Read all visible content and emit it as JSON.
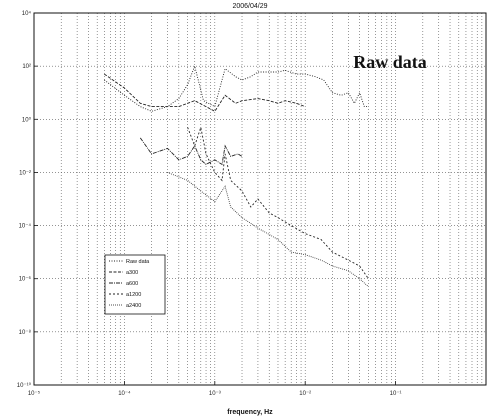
{
  "chart_data": {
    "type": "line",
    "title": "2006/04/29",
    "xlabel": "frequency, Hz",
    "ylabel": "",
    "x_scale": "log",
    "y_scale": "log",
    "xlim": [
      1e-05,
      1
    ],
    "ylim": [
      1e-10,
      10000
    ],
    "grid": true,
    "legend_position": "lower-left",
    "annotation": "Raw data",
    "x_ticks": [
      {
        "value": 1e-05,
        "label": "10⁻⁵"
      },
      {
        "value": 0.0001,
        "label": "10⁻⁴"
      },
      {
        "value": 0.001,
        "label": "10⁻³"
      },
      {
        "value": 0.01,
        "label": "10⁻²"
      },
      {
        "value": 0.1,
        "label": "10⁻¹"
      }
    ],
    "y_ticks": [
      {
        "value": 10000,
        "label": "10⁴"
      },
      {
        "value": 100,
        "label": "10²"
      },
      {
        "value": 1,
        "label": "10⁰"
      },
      {
        "value": 0.01,
        "label": "10⁻²"
      },
      {
        "value": 0.0001,
        "label": "10⁻⁴"
      },
      {
        "value": 1e-06,
        "label": "10⁻⁶"
      },
      {
        "value": 1e-08,
        "label": "10⁻⁸"
      },
      {
        "value": 1e-10,
        "label": "10⁻¹⁰"
      }
    ],
    "series": [
      {
        "name": "Raw data",
        "dash": "1,1.5",
        "x": [
          6e-05,
          0.0001,
          0.00015,
          0.0002,
          0.0003,
          0.0004,
          0.0005,
          0.0006,
          0.00075,
          0.001,
          0.0013,
          0.0017,
          0.002,
          0.0025,
          0.003,
          0.004,
          0.005,
          0.006,
          0.008,
          0.01,
          0.013,
          0.016,
          0.02,
          0.025,
          0.03,
          0.035,
          0.04,
          0.045,
          0.05
        ],
        "y": [
          30,
          8,
          3,
          2,
          3,
          6,
          20,
          100,
          5,
          3,
          80,
          40,
          30,
          40,
          60,
          60,
          60,
          70,
          50,
          50,
          40,
          30,
          10,
          8,
          10,
          4,
          10,
          3,
          3
        ]
      },
      {
        "name": "a300",
        "dash": "3,1.5",
        "x": [
          6e-05,
          0.0001,
          0.00015,
          0.0002,
          0.0003,
          0.0004,
          0.0005,
          0.0006,
          0.0008,
          0.001,
          0.0013,
          0.0017,
          0.002,
          0.003,
          0.004,
          0.005,
          0.006,
          0.008,
          0.01
        ],
        "y": [
          50,
          15,
          4,
          3,
          3,
          3,
          4,
          5,
          3,
          2,
          8,
          4,
          5,
          6,
          5,
          4,
          5,
          4,
          3
        ]
      },
      {
        "name": "a600",
        "dash": "4,1,1,1",
        "x": [
          0.00015,
          0.0002,
          0.0003,
          0.0004,
          0.0005,
          0.0006,
          0.0007,
          0.0008,
          0.001,
          0.0012,
          0.0013,
          0.0015,
          0.0018,
          0.002
        ],
        "y": [
          0.2,
          0.05,
          0.08,
          0.03,
          0.04,
          0.1,
          0.03,
          0.02,
          0.03,
          0.02,
          0.1,
          0.04,
          0.05,
          0.04
        ]
      },
      {
        "name": "a1200",
        "dash": "2,2",
        "x": [
          0.0005,
          0.0006,
          0.0007,
          0.0008,
          0.001,
          0.0012,
          0.0013,
          0.0015,
          0.002,
          0.0025,
          0.003,
          0.004,
          0.005,
          0.007,
          0.01,
          0.015,
          0.02,
          0.03,
          0.04,
          0.05
        ],
        "y": [
          0.5,
          0.1,
          0.5,
          0.05,
          0.01,
          0.005,
          0.05,
          0.005,
          0.002,
          0.0005,
          0.001,
          0.0003,
          0.0002,
          0.0001,
          5e-05,
          3e-05,
          1e-05,
          5e-06,
          3e-06,
          1e-06
        ]
      },
      {
        "name": "a2400",
        "dash": "0.8,1.2",
        "x": [
          0.0003,
          0.0005,
          0.0007,
          0.001,
          0.0013,
          0.0015,
          0.002,
          0.003,
          0.005,
          0.007,
          0.01,
          0.015,
          0.02,
          0.03,
          0.04,
          0.05
        ],
        "y": [
          0.01,
          0.005,
          0.002,
          0.0008,
          0.003,
          0.0005,
          0.0002,
          8e-05,
          3e-05,
          1e-05,
          8e-06,
          5e-06,
          3e-06,
          2e-06,
          1e-06,
          5e-07
        ]
      }
    ]
  }
}
